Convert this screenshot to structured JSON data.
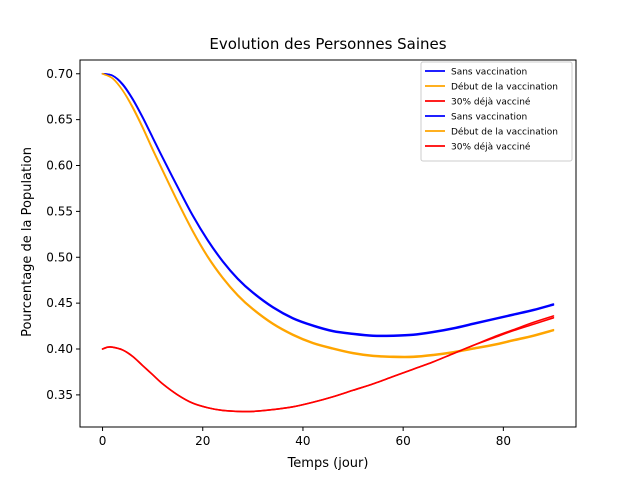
{
  "chart_data": {
    "type": "line",
    "title": "Evolution des Personnes Saines",
    "xlabel": "Temps (jour)",
    "ylabel": "Pourcentage de la Population",
    "xlim": [
      -4.5,
      94.5
    ],
    "ylim": [
      0.315,
      0.715
    ],
    "xticks": [
      0,
      20,
      40,
      60,
      80
    ],
    "xtick_labels": [
      "0",
      "20",
      "40",
      "60",
      "80"
    ],
    "yticks": [
      0.35,
      0.4,
      0.45,
      0.5,
      0.55,
      0.6,
      0.65,
      0.7
    ],
    "ytick_labels": [
      "0.35",
      "0.40",
      "0.45",
      "0.50",
      "0.55",
      "0.60",
      "0.65",
      "0.70"
    ],
    "grid": false,
    "legend_position": "top-right",
    "series": [
      {
        "name": "Sans vaccination",
        "color": "#0000ff",
        "x": [
          0,
          2,
          4,
          6,
          8,
          10,
          12,
          15,
          18,
          21,
          24,
          27,
          30,
          34,
          38,
          42,
          46,
          50,
          54,
          58,
          62,
          66,
          70,
          74,
          78,
          82,
          86,
          90
        ],
        "y": [
          0.7,
          0.698,
          0.688,
          0.672,
          0.652,
          0.63,
          0.608,
          0.576,
          0.545,
          0.518,
          0.495,
          0.476,
          0.461,
          0.445,
          0.433,
          0.425,
          0.419,
          0.416,
          0.414,
          0.414,
          0.415,
          0.418,
          0.422,
          0.427,
          0.432,
          0.437,
          0.442,
          0.448
        ]
      },
      {
        "name": "Début de la vaccination",
        "color": "#ffa500",
        "x": [
          0,
          2,
          4,
          6,
          8,
          10,
          12,
          15,
          18,
          21,
          24,
          27,
          30,
          34,
          38,
          42,
          46,
          50,
          54,
          58,
          62,
          66,
          70,
          74,
          78,
          82,
          86,
          90
        ],
        "y": [
          0.7,
          0.695,
          0.682,
          0.663,
          0.641,
          0.617,
          0.594,
          0.56,
          0.528,
          0.5,
          0.477,
          0.458,
          0.443,
          0.427,
          0.415,
          0.406,
          0.4,
          0.395,
          0.392,
          0.391,
          0.391,
          0.393,
          0.396,
          0.4,
          0.404,
          0.409,
          0.414,
          0.42
        ]
      },
      {
        "name": "30% déjà vacciné",
        "color": "#ff0000",
        "x": [
          0,
          1,
          2,
          4,
          6,
          8,
          10,
          12,
          15,
          18,
          21,
          24,
          27,
          30,
          34,
          38,
          42,
          46,
          50,
          54,
          58,
          62,
          66,
          70,
          74,
          78,
          82,
          86,
          90
        ],
        "y": [
          0.4,
          0.402,
          0.402,
          0.399,
          0.392,
          0.382,
          0.372,
          0.362,
          0.35,
          0.341,
          0.336,
          0.333,
          0.332,
          0.332,
          0.334,
          0.337,
          0.342,
          0.348,
          0.355,
          0.362,
          0.37,
          0.378,
          0.386,
          0.395,
          0.404,
          0.413,
          0.421,
          0.429,
          0.436
        ]
      },
      {
        "name": "Sans vaccination",
        "color": "#0000ff",
        "x": [
          0,
          2,
          4,
          6,
          8,
          10,
          12,
          15,
          18,
          21,
          24,
          27,
          30,
          34,
          38,
          42,
          46,
          50,
          54,
          58,
          62,
          66,
          70,
          74,
          78,
          82,
          86,
          90
        ],
        "y": [
          0.7,
          0.698,
          0.689,
          0.673,
          0.653,
          0.631,
          0.609,
          0.577,
          0.546,
          0.519,
          0.496,
          0.477,
          0.462,
          0.446,
          0.434,
          0.426,
          0.42,
          0.417,
          0.415,
          0.415,
          0.416,
          0.419,
          0.423,
          0.428,
          0.433,
          0.438,
          0.443,
          0.449
        ]
      },
      {
        "name": "Début de la vaccination",
        "color": "#ffa500",
        "x": [
          0,
          2,
          4,
          6,
          8,
          10,
          12,
          15,
          18,
          21,
          24,
          27,
          30,
          34,
          38,
          42,
          46,
          50,
          54,
          58,
          62,
          66,
          70,
          74,
          78,
          82,
          86,
          90
        ],
        "y": [
          0.7,
          0.695,
          0.682,
          0.664,
          0.642,
          0.618,
          0.595,
          0.561,
          0.529,
          0.501,
          0.478,
          0.459,
          0.444,
          0.428,
          0.416,
          0.407,
          0.401,
          0.396,
          0.393,
          0.392,
          0.392,
          0.394,
          0.397,
          0.401,
          0.405,
          0.41,
          0.415,
          0.421
        ]
      },
      {
        "name": "30% déjà vacciné",
        "color": "#ff0000",
        "x": [
          0,
          1,
          2,
          4,
          6,
          8,
          10,
          12,
          15,
          18,
          21,
          24,
          27,
          30,
          34,
          38,
          42,
          46,
          50,
          54,
          58,
          62,
          66,
          70,
          74,
          78,
          82,
          86,
          90
        ],
        "y": [
          0.4,
          0.402,
          0.402,
          0.399,
          0.392,
          0.382,
          0.372,
          0.362,
          0.35,
          0.341,
          0.336,
          0.333,
          0.332,
          0.332,
          0.334,
          0.337,
          0.342,
          0.348,
          0.355,
          0.362,
          0.37,
          0.378,
          0.386,
          0.395,
          0.404,
          0.412,
          0.42,
          0.427,
          0.434
        ]
      }
    ]
  }
}
